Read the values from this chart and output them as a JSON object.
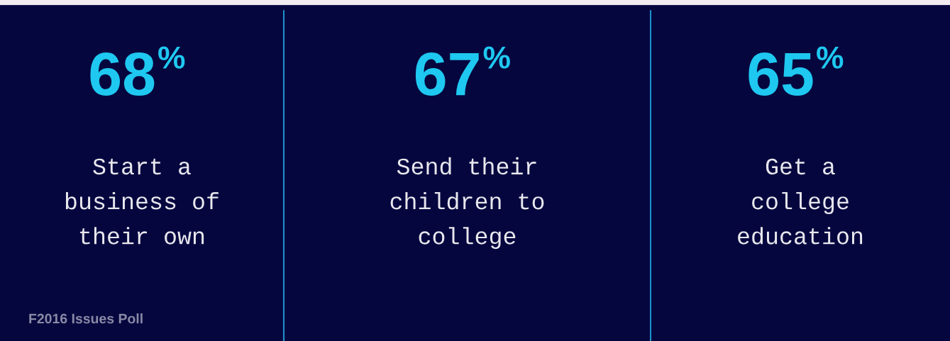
{
  "chart_data": {
    "type": "other",
    "categories": [
      "Start a\nbusiness of\ntheir own",
      "Send their\nchildren to\ncollege",
      "Get a\ncollege\neducation"
    ],
    "values": [
      68,
      67,
      65
    ],
    "value_labels": [
      "68%",
      "67%",
      "65%"
    ],
    "color": "#1ec8f0",
    "annotations": [
      "F2016 Issues Poll"
    ]
  }
}
